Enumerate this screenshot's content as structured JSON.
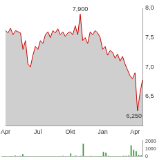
{
  "chart_data": [
    {
      "type": "area",
      "categories": [
        "Apr",
        null,
        null,
        null,
        null,
        null,
        null,
        null,
        null,
        null,
        null,
        null,
        null,
        "Jul",
        null,
        null,
        null,
        null,
        null,
        null,
        null,
        null,
        null,
        null,
        null,
        null,
        "Okt",
        null,
        null,
        null,
        null,
        null,
        null,
        null,
        null,
        null,
        null,
        null,
        null,
        "Jan",
        null,
        null,
        null,
        null,
        null,
        null,
        null,
        null,
        null,
        null,
        null,
        null,
        "Apr",
        null,
        null,
        null
      ],
      "values": [
        7.62,
        7.58,
        7.66,
        7.55,
        7.62,
        7.6,
        7.58,
        7.3,
        7.45,
        7.05,
        7.0,
        7.2,
        7.35,
        7.3,
        7.45,
        7.4,
        7.55,
        7.6,
        7.5,
        7.62,
        7.58,
        7.65,
        7.55,
        7.6,
        7.52,
        7.58,
        7.6,
        7.55,
        7.7,
        7.55,
        7.9,
        7.45,
        7.5,
        7.4,
        7.6,
        7.55,
        7.62,
        7.58,
        7.5,
        7.3,
        7.35,
        7.2,
        7.28,
        7.25,
        7.15,
        7.22,
        7.1,
        7.18,
        7.05,
        6.95,
        6.85,
        6.8,
        6.9,
        6.25,
        6.55,
        6.78
      ],
      "color": "#cc0000",
      "ylim": [
        6.0,
        8.0
      ],
      "yticks": [
        {
          "value": 6.5,
          "label": "6,5"
        },
        {
          "value": 7.0,
          "label": "7,0"
        },
        {
          "value": 7.5,
          "label": "7,5"
        },
        {
          "value": 8.0,
          "label": "8,0"
        }
      ],
      "grid": false,
      "annotations": [
        {
          "text": "7,900",
          "value": 7.9
        },
        {
          "text": "6,250",
          "value": 6.25
        }
      ]
    },
    {
      "type": "bar",
      "categories": [
        "Apr",
        null,
        null,
        null,
        null,
        null,
        null,
        null,
        null,
        null,
        null,
        null,
        null,
        "Jul",
        null,
        null,
        null,
        null,
        null,
        null,
        null,
        null,
        null,
        null,
        null,
        null,
        "Okt",
        null,
        null,
        null,
        null,
        null,
        null,
        null,
        null,
        null,
        null,
        null,
        null,
        "Jan",
        null,
        null,
        null,
        null,
        null,
        null,
        null,
        null,
        null,
        null,
        null,
        null,
        "Apr",
        null,
        null,
        null
      ],
      "values": [
        40,
        60,
        30,
        80,
        50,
        120,
        60,
        90,
        300,
        70,
        50,
        60,
        40,
        30,
        60,
        40,
        50,
        80,
        60,
        40,
        50,
        70,
        40,
        60,
        90,
        50,
        60,
        400,
        80,
        120,
        60,
        100,
        1700,
        80,
        60,
        90,
        50,
        70,
        60,
        80,
        600,
        500,
        90,
        60,
        70,
        50,
        80,
        60,
        100,
        90,
        120,
        1500,
        900,
        700,
        200,
        150
      ],
      "color": "#3a9a3a",
      "ylim": [
        0,
        2200
      ],
      "yticks": [
        0,
        1000,
        2000
      ],
      "grid": false,
      "tick_labels": "y"
    }
  ]
}
